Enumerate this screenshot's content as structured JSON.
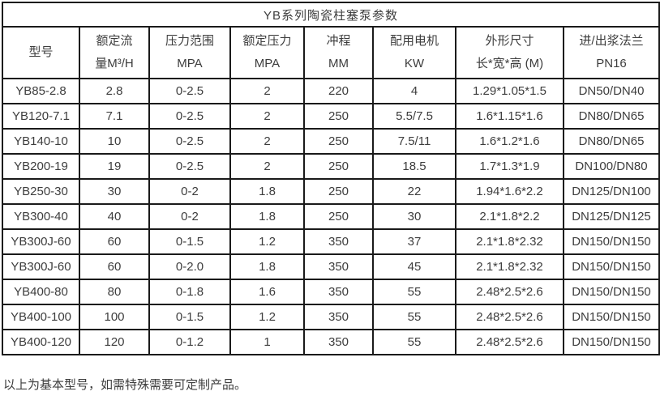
{
  "table": {
    "title": "YB系列陶瓷柱塞泵参数",
    "columns": [
      {
        "lines": [
          "型号"
        ]
      },
      {
        "lines": [
          "额定流",
          "量M³/H"
        ]
      },
      {
        "lines": [
          "压力范围",
          "MPA"
        ]
      },
      {
        "lines": [
          "额定压力",
          "MPA"
        ]
      },
      {
        "lines": [
          "冲程",
          "MM"
        ]
      },
      {
        "lines": [
          "配用电机",
          "KW"
        ]
      },
      {
        "lines": [
          "外形尺寸",
          "长*宽*高 (M)"
        ]
      },
      {
        "lines": [
          "进/出浆法兰",
          "PN16"
        ]
      }
    ],
    "rows": [
      [
        "YB85-2.8",
        "2.8",
        "0-2.5",
        "2",
        "220",
        "4",
        "1.29*1.05*1.5",
        "DN50/DN40"
      ],
      [
        "YB120-7.1",
        "7.1",
        "0-2.5",
        "2",
        "250",
        "5.5/7.5",
        "1.6*1.15*1.6",
        "DN80/DN65"
      ],
      [
        "YB140-10",
        "10",
        "0-2.5",
        "2",
        "250",
        "7.5/11",
        "1.6*1.2*1.6",
        "DN80/DN65"
      ],
      [
        "YB200-19",
        "19",
        "0-2.5",
        "2",
        "250",
        "18.5",
        "1.7*1.3*1.9",
        "DN100/DN80"
      ],
      [
        "YB250-30",
        "30",
        "0-2",
        "1.8",
        "250",
        "22",
        "1.94*1.6*2.2",
        "DN125/DN100"
      ],
      [
        "YB300-40",
        "40",
        "0-2",
        "1.8",
        "250",
        "30",
        "2.1*1.8*2.2",
        "DN125/DN125"
      ],
      [
        "YB300J-60",
        "60",
        "0-1.5",
        "1.2",
        "350",
        "37",
        "2.1*1.8*2.32",
        "DN150/DN150"
      ],
      [
        "YB300J-60",
        "60",
        "0-2.0",
        "1.8",
        "350",
        "45",
        "2.1*1.8*2.32",
        "DN150/DN150"
      ],
      [
        "YB400-80",
        "80",
        "0-1.8",
        "1.6",
        "350",
        "55",
        "2.48*2.5*2.6",
        "DN150/DN150"
      ],
      [
        "YB400-100",
        "100",
        "0-1.5",
        "1.2",
        "350",
        "55",
        "2.48*2.5*2.6",
        "DN150/DN150"
      ],
      [
        "YB400-120",
        "120",
        "0-1.2",
        "1",
        "350",
        "55",
        "2.48*2.5*2.6",
        "DN150/DN150"
      ]
    ]
  },
  "footer": {
    "note": "以上为基本型号，如需特殊需要可定制产品。"
  },
  "colors": {
    "border": "#1a1a1a",
    "text": "#3d3d3d",
    "background": "#ffffff"
  }
}
